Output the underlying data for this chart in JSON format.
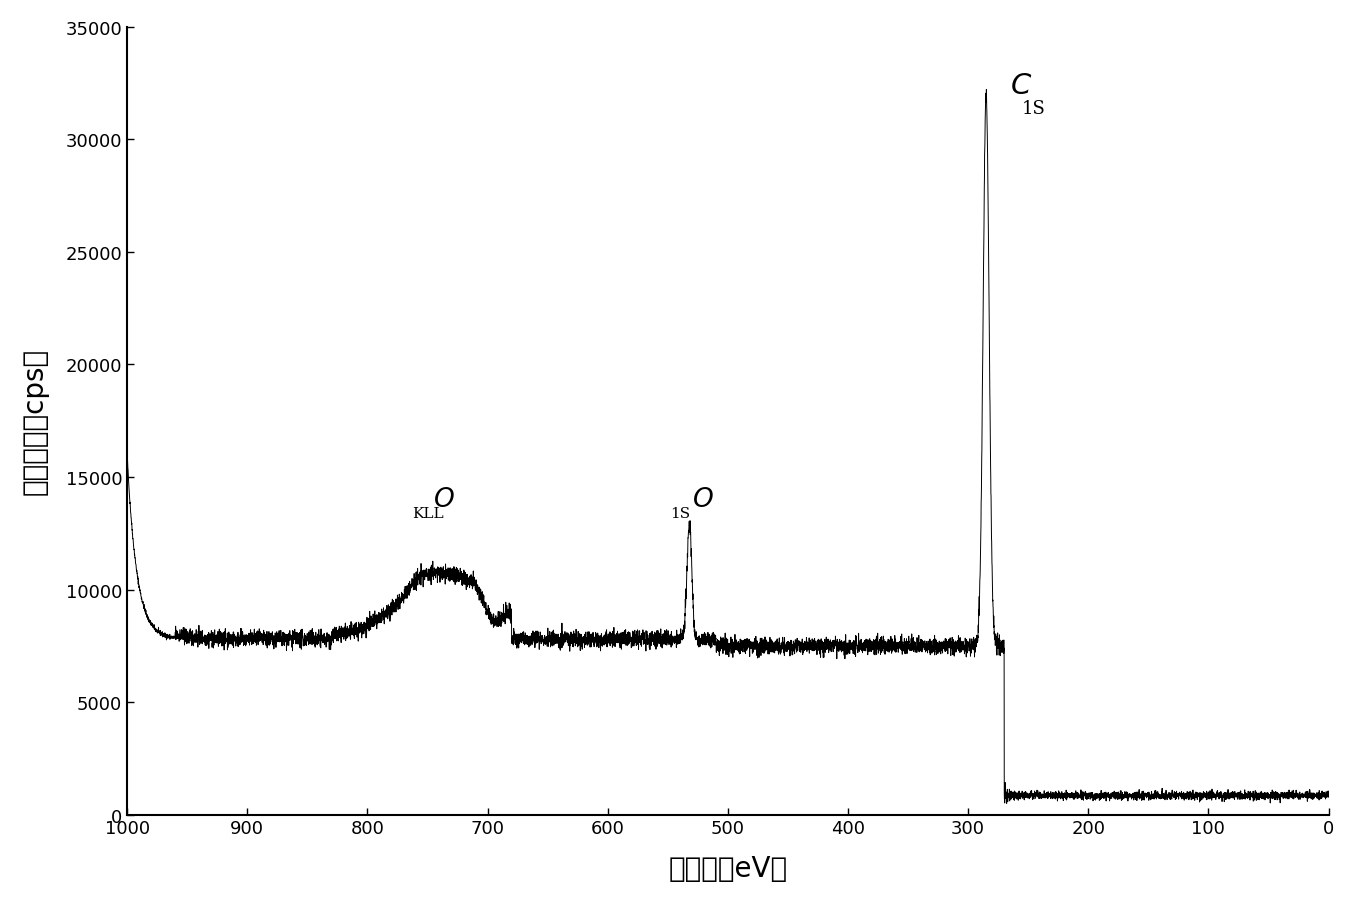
{
  "xlim": [
    1000,
    0
  ],
  "ylim": [
    0,
    35000
  ],
  "xlabel": "结合能（eV）",
  "ylabel": "相对强度（cps）",
  "xticks": [
    1000,
    900,
    800,
    700,
    600,
    500,
    400,
    300,
    200,
    100,
    0
  ],
  "yticks": [
    0,
    5000,
    10000,
    15000,
    20000,
    25000,
    30000,
    35000
  ],
  "line_color": "#000000",
  "background_color": "#ffffff",
  "noise_seed": 42
}
